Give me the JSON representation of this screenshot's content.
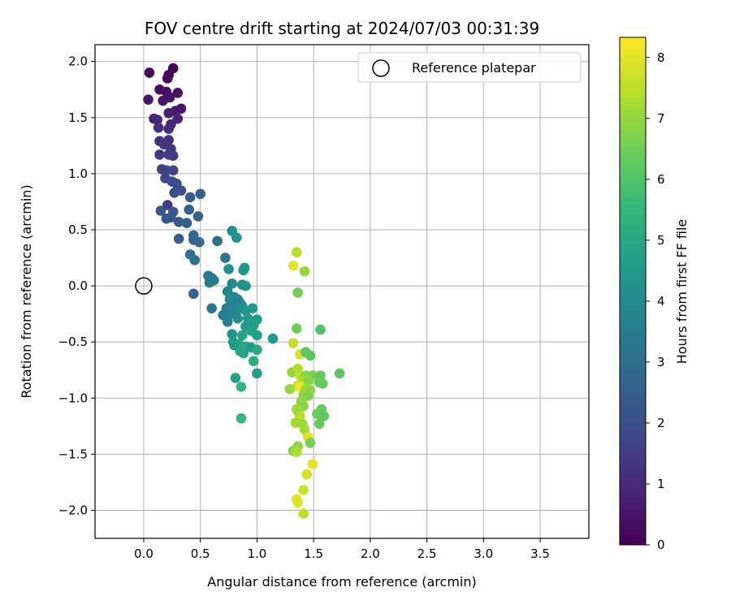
{
  "chart_data": {
    "type": "scatter",
    "title": "FOV centre drift starting at 2024/07/03 00:31:39",
    "xlabel": "Angular distance from reference (arcmin)",
    "ylabel": "Rotation from reference (arcmin)",
    "xlim": [
      -0.43,
      3.93
    ],
    "ylim": [
      -2.25,
      2.15
    ],
    "xticks": [
      0.0,
      0.5,
      1.0,
      1.5,
      2.0,
      2.5,
      3.0,
      3.5
    ],
    "xtick_labels": [
      "0.0",
      "0.5",
      "1.0",
      "1.5",
      "2.0",
      "2.5",
      "3.0",
      "3.5"
    ],
    "yticks": [
      2.0,
      1.5,
      1.0,
      0.5,
      0.0,
      -0.5,
      -1.0,
      -1.5,
      -2.0
    ],
    "ytick_labels": [
      "2.0",
      "1.5",
      "1.0",
      "0.5",
      "0.0",
      "−0.5",
      "−1.0",
      "−1.5",
      "−2.0"
    ],
    "grid": true,
    "legend": {
      "position": "top-right",
      "entries": [
        "Reference platepar"
      ]
    },
    "reference_point": {
      "x": 0.0,
      "y": 0.0
    },
    "colorbar": {
      "label": "Hours from first FF file",
      "range": [
        0,
        8.33
      ],
      "ticks": [
        0,
        1,
        2,
        3,
        4,
        5,
        6,
        7,
        8
      ],
      "tick_labels": [
        "0",
        "1",
        "2",
        "3",
        "4",
        "5",
        "6",
        "7",
        "8"
      ],
      "colormap": "viridis"
    },
    "series": [
      {
        "points": [
          {
            "x": 0.26,
            "y": 1.94,
            "t": 0.05
          },
          {
            "x": 0.22,
            "y": 1.88,
            "t": 0.1
          },
          {
            "x": 0.21,
            "y": 1.85,
            "t": 0.15
          },
          {
            "x": 0.05,
            "y": 1.9,
            "t": 0.2
          },
          {
            "x": 0.14,
            "y": 1.75,
            "t": 0.3
          },
          {
            "x": 0.2,
            "y": 1.73,
            "t": 0.35
          },
          {
            "x": 0.3,
            "y": 1.72,
            "t": 0.4
          },
          {
            "x": 0.23,
            "y": 1.68,
            "t": 0.45
          },
          {
            "x": 0.17,
            "y": 1.65,
            "t": 0.5
          },
          {
            "x": 0.04,
            "y": 1.66,
            "t": 0.55
          },
          {
            "x": 0.33,
            "y": 1.58,
            "t": 0.6
          },
          {
            "x": 0.28,
            "y": 1.56,
            "t": 0.65
          },
          {
            "x": 0.22,
            "y": 1.54,
            "t": 0.7
          },
          {
            "x": 0.09,
            "y": 1.49,
            "t": 0.8
          },
          {
            "x": 0.3,
            "y": 1.49,
            "t": 0.85
          },
          {
            "x": 0.12,
            "y": 1.48,
            "t": 0.9
          },
          {
            "x": 0.24,
            "y": 1.44,
            "t": 0.95
          },
          {
            "x": 0.22,
            "y": 1.4,
            "t": 1.0
          },
          {
            "x": 0.13,
            "y": 1.41,
            "t": 1.1
          },
          {
            "x": 0.22,
            "y": 1.3,
            "t": 1.2
          },
          {
            "x": 0.14,
            "y": 1.29,
            "t": 1.25
          },
          {
            "x": 0.18,
            "y": 1.26,
            "t": 1.3
          },
          {
            "x": 0.24,
            "y": 1.22,
            "t": 1.35
          },
          {
            "x": 0.14,
            "y": 1.17,
            "t": 1.4
          },
          {
            "x": 0.22,
            "y": 1.17,
            "t": 1.5
          },
          {
            "x": 0.26,
            "y": 1.16,
            "t": 1.55
          },
          {
            "x": 0.16,
            "y": 1.04,
            "t": 1.65
          },
          {
            "x": 0.2,
            "y": 1.03,
            "t": 1.7
          },
          {
            "x": 0.26,
            "y": 1.03,
            "t": 1.75
          },
          {
            "x": 0.19,
            "y": 0.96,
            "t": 1.8
          },
          {
            "x": 0.25,
            "y": 0.93,
            "t": 1.85
          },
          {
            "x": 0.29,
            "y": 0.91,
            "t": 1.9
          },
          {
            "x": 0.3,
            "y": 0.86,
            "t": 2.0
          },
          {
            "x": 0.33,
            "y": 0.85,
            "t": 2.05
          },
          {
            "x": 0.27,
            "y": 0.83,
            "t": 2.1
          },
          {
            "x": 0.21,
            "y": 0.72,
            "t": 1.5
          },
          {
            "x": 0.15,
            "y": 0.67,
            "t": 2.15
          },
          {
            "x": 0.26,
            "y": 0.66,
            "t": 2.2
          },
          {
            "x": 0.2,
            "y": 0.6,
            "t": 2.25
          },
          {
            "x": 0.24,
            "y": 0.61,
            "t": 2.3
          },
          {
            "x": 0.31,
            "y": 0.57,
            "t": 2.4
          },
          {
            "x": 0.38,
            "y": 0.56,
            "t": 2.45
          },
          {
            "x": 0.41,
            "y": 0.79,
            "t": 2.5
          },
          {
            "x": 0.5,
            "y": 0.82,
            "t": 2.55
          },
          {
            "x": 0.4,
            "y": 0.68,
            "t": 2.6
          },
          {
            "x": 0.48,
            "y": 0.62,
            "t": 2.65
          },
          {
            "x": 0.31,
            "y": 0.42,
            "t": 2.5
          },
          {
            "x": 0.44,
            "y": 0.45,
            "t": 2.75
          },
          {
            "x": 0.44,
            "y": 0.41,
            "t": 2.8
          },
          {
            "x": 0.49,
            "y": 0.39,
            "t": 2.85
          },
          {
            "x": 0.65,
            "y": 0.4,
            "t": 3.0
          },
          {
            "x": 0.41,
            "y": 0.28,
            "t": 3.05
          },
          {
            "x": 0.45,
            "y": 0.23,
            "t": 3.1
          },
          {
            "x": 0.72,
            "y": 0.25,
            "t": 3.2
          },
          {
            "x": 0.57,
            "y": 0.09,
            "t": 3.25
          },
          {
            "x": 0.6,
            "y": 0.07,
            "t": 3.3
          },
          {
            "x": 0.58,
            "y": 0.03,
            "t": 3.35
          },
          {
            "x": 0.62,
            "y": 0.05,
            "t": 3.4
          },
          {
            "x": 0.44,
            "y": -0.07,
            "t": 2.6
          },
          {
            "x": 0.6,
            "y": -0.2,
            "t": 3.35
          },
          {
            "x": 0.78,
            "y": 0.49,
            "t": 4.2
          },
          {
            "x": 0.82,
            "y": 0.43,
            "t": 4.3
          },
          {
            "x": 0.75,
            "y": 0.15,
            "t": 4.1
          },
          {
            "x": 0.89,
            "y": 0.16,
            "t": 4.4
          },
          {
            "x": 0.88,
            "y": 0.14,
            "t": 4.45
          },
          {
            "x": 0.78,
            "y": 0.02,
            "t": 4.0
          },
          {
            "x": 0.87,
            "y": 0.01,
            "t": 4.2
          },
          {
            "x": 0.9,
            "y": 0.0,
            "t": 4.25
          },
          {
            "x": 0.74,
            "y": -0.05,
            "t": 3.8
          },
          {
            "x": 0.8,
            "y": -0.1,
            "t": 3.85
          },
          {
            "x": 0.76,
            "y": -0.12,
            "t": 3.9
          },
          {
            "x": 0.83,
            "y": -0.12,
            "t": 3.95
          },
          {
            "x": 0.85,
            "y": -0.15,
            "t": 3.75
          },
          {
            "x": 0.79,
            "y": -0.17,
            "t": 3.7
          },
          {
            "x": 0.73,
            "y": -0.2,
            "t": 3.65
          },
          {
            "x": 0.83,
            "y": -0.21,
            "t": 4.0
          },
          {
            "x": 0.87,
            "y": -0.18,
            "t": 4.05
          },
          {
            "x": 0.9,
            "y": -0.22,
            "t": 4.4
          },
          {
            "x": 0.96,
            "y": -0.2,
            "t": 4.5
          },
          {
            "x": 0.7,
            "y": -0.26,
            "t": 3.6
          },
          {
            "x": 0.77,
            "y": -0.25,
            "t": 3.8
          },
          {
            "x": 0.74,
            "y": -0.32,
            "t": 3.7
          },
          {
            "x": 0.83,
            "y": -0.29,
            "t": 4.1
          },
          {
            "x": 0.92,
            "y": -0.29,
            "t": 4.6
          },
          {
            "x": 1.0,
            "y": -0.3,
            "t": 4.55
          },
          {
            "x": 0.9,
            "y": -0.36,
            "t": 4.6
          },
          {
            "x": 0.97,
            "y": -0.35,
            "t": 4.65
          },
          {
            "x": 0.95,
            "y": -0.4,
            "t": 4.8
          },
          {
            "x": 0.78,
            "y": -0.43,
            "t": 4.3
          },
          {
            "x": 0.87,
            "y": -0.44,
            "t": 4.9
          },
          {
            "x": 1.0,
            "y": -0.44,
            "t": 4.7
          },
          {
            "x": 1.14,
            "y": -0.47,
            "t": 4.5
          },
          {
            "x": 0.79,
            "y": -0.5,
            "t": 4.6
          },
          {
            "x": 0.84,
            "y": -0.52,
            "t": 4.8
          },
          {
            "x": 0.8,
            "y": -0.53,
            "t": 4.55
          },
          {
            "x": 0.9,
            "y": -0.54,
            "t": 5.0
          },
          {
            "x": 0.85,
            "y": -0.58,
            "t": 4.9
          },
          {
            "x": 0.95,
            "y": -0.55,
            "t": 4.6
          },
          {
            "x": 1.0,
            "y": -0.57,
            "t": 5.0
          },
          {
            "x": 0.88,
            "y": -0.6,
            "t": 4.85
          },
          {
            "x": 0.97,
            "y": -0.67,
            "t": 5.1
          },
          {
            "x": 1.0,
            "y": -0.78,
            "t": 4.7
          },
          {
            "x": 0.81,
            "y": -0.82,
            "t": 4.85
          },
          {
            "x": 0.86,
            "y": -0.9,
            "t": 5.5
          },
          {
            "x": 0.86,
            "y": -1.18,
            "t": 5.5
          },
          {
            "x": 1.35,
            "y": 0.3,
            "t": 7.4
          },
          {
            "x": 1.32,
            "y": 0.18,
            "t": 8.0
          },
          {
            "x": 1.42,
            "y": 0.13,
            "t": 7.0
          },
          {
            "x": 1.36,
            "y": -0.06,
            "t": 6.5
          },
          {
            "x": 1.35,
            "y": -0.38,
            "t": 6.5
          },
          {
            "x": 1.56,
            "y": -0.39,
            "t": 6.0
          },
          {
            "x": 1.32,
            "y": -0.51,
            "t": 7.6
          },
          {
            "x": 1.38,
            "y": -0.61,
            "t": 7.8
          },
          {
            "x": 1.43,
            "y": -0.59,
            "t": 6.2
          },
          {
            "x": 1.47,
            "y": -0.62,
            "t": 6.2
          },
          {
            "x": 1.31,
            "y": -0.77,
            "t": 7.0
          },
          {
            "x": 1.36,
            "y": -0.74,
            "t": 7.3
          },
          {
            "x": 1.38,
            "y": -0.8,
            "t": 7.5
          },
          {
            "x": 1.43,
            "y": -0.8,
            "t": 6.8
          },
          {
            "x": 1.49,
            "y": -0.8,
            "t": 6.6
          },
          {
            "x": 1.56,
            "y": -0.8,
            "t": 6.3
          },
          {
            "x": 1.73,
            "y": -0.78,
            "t": 6.2
          },
          {
            "x": 1.41,
            "y": -0.85,
            "t": 7.2
          },
          {
            "x": 1.46,
            "y": -0.84,
            "t": 6.8
          },
          {
            "x": 1.55,
            "y": -0.86,
            "t": 6.4
          },
          {
            "x": 1.58,
            "y": -0.87,
            "t": 6.3
          },
          {
            "x": 1.29,
            "y": -0.92,
            "t": 7.0
          },
          {
            "x": 1.36,
            "y": -0.89,
            "t": 7.5
          },
          {
            "x": 1.38,
            "y": -0.9,
            "t": 8.2
          },
          {
            "x": 1.43,
            "y": -0.92,
            "t": 7.1
          },
          {
            "x": 1.47,
            "y": -0.93,
            "t": 6.9
          },
          {
            "x": 1.41,
            "y": -0.97,
            "t": 7.0
          },
          {
            "x": 1.45,
            "y": -0.98,
            "t": 6.7
          },
          {
            "x": 1.39,
            "y": -1.03,
            "t": 6.9
          },
          {
            "x": 1.41,
            "y": -1.07,
            "t": 6.8
          },
          {
            "x": 1.35,
            "y": -1.1,
            "t": 7.1
          },
          {
            "x": 1.37,
            "y": -1.13,
            "t": 7.0
          },
          {
            "x": 1.57,
            "y": -1.1,
            "t": 6.3
          },
          {
            "x": 1.53,
            "y": -1.14,
            "t": 6.4
          },
          {
            "x": 1.59,
            "y": -1.16,
            "t": 6.2
          },
          {
            "x": 1.38,
            "y": -1.16,
            "t": 7.4
          },
          {
            "x": 1.37,
            "y": -1.2,
            "t": 7.6
          },
          {
            "x": 1.34,
            "y": -1.22,
            "t": 7.2
          },
          {
            "x": 1.4,
            "y": -1.23,
            "t": 7.1
          },
          {
            "x": 1.55,
            "y": -1.23,
            "t": 6.3
          },
          {
            "x": 1.42,
            "y": -1.28,
            "t": 7.2
          },
          {
            "x": 1.45,
            "y": -1.35,
            "t": 7.9
          },
          {
            "x": 1.47,
            "y": -1.4,
            "t": 6.6
          },
          {
            "x": 1.36,
            "y": -1.43,
            "t": 6.9
          },
          {
            "x": 1.32,
            "y": -1.47,
            "t": 6.8
          },
          {
            "x": 1.35,
            "y": -1.48,
            "t": 7.3
          },
          {
            "x": 1.49,
            "y": -1.59,
            "t": 8.0
          },
          {
            "x": 1.44,
            "y": -1.68,
            "t": 7.8
          },
          {
            "x": 1.41,
            "y": -1.82,
            "t": 7.7
          },
          {
            "x": 1.35,
            "y": -1.9,
            "t": 8.0
          },
          {
            "x": 1.36,
            "y": -1.93,
            "t": 7.9
          },
          {
            "x": 1.41,
            "y": -2.03,
            "t": 7.5
          }
        ]
      }
    ]
  }
}
